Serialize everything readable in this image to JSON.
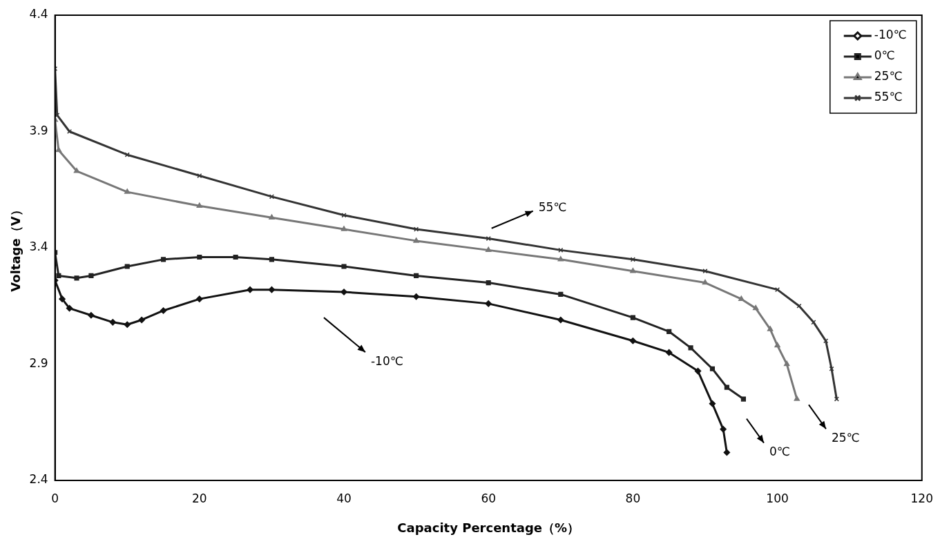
{
  "chart_data": {
    "type": "line",
    "xlabel": "Capacity Percentage（%）",
    "ylabel": "Voltage（V）",
    "xlim": [
      0,
      120
    ],
    "xticks": [
      0,
      20,
      40,
      60,
      80,
      100,
      120
    ],
    "ylim": [
      2.4,
      4.4
    ],
    "yticks": [
      2.4,
      2.9,
      3.4,
      3.9,
      4.4
    ],
    "grid": false,
    "legend": "top right",
    "line_style": "solid",
    "series": [
      {
        "name": "-10℃",
        "color": "#111111",
        "marker": "diamond",
        "x": [
          0,
          1,
          2,
          5,
          8,
          10,
          12,
          15,
          20,
          27,
          30,
          40,
          50,
          60,
          70,
          80,
          85,
          89,
          91,
          92.5,
          93
        ],
        "values": [
          3.26,
          3.18,
          3.14,
          3.11,
          3.08,
          3.07,
          3.09,
          3.13,
          3.18,
          3.22,
          3.22,
          3.21,
          3.19,
          3.16,
          3.09,
          3.0,
          2.95,
          2.87,
          2.73,
          2.62,
          2.52
        ]
      },
      {
        "name": "0℃",
        "color": "#222222",
        "marker": "square",
        "x": [
          0,
          0.5,
          3,
          5,
          10,
          15,
          20,
          25,
          30,
          40,
          50,
          60,
          70,
          80,
          85,
          88,
          91,
          93,
          95.3
        ],
        "values": [
          3.38,
          3.28,
          3.27,
          3.28,
          3.32,
          3.35,
          3.36,
          3.36,
          3.35,
          3.32,
          3.28,
          3.25,
          3.2,
          3.1,
          3.04,
          2.97,
          2.88,
          2.8,
          2.75
        ]
      },
      {
        "name": "25℃",
        "color": "#777777",
        "marker": "triangle",
        "x": [
          0,
          0.5,
          3,
          10,
          20,
          30,
          40,
          50,
          60,
          70,
          80,
          90,
          95,
          97,
          99,
          100,
          101.3,
          102.7
        ],
        "values": [
          3.95,
          3.82,
          3.73,
          3.64,
          3.58,
          3.53,
          3.48,
          3.43,
          3.39,
          3.35,
          3.3,
          3.25,
          3.18,
          3.14,
          3.05,
          2.98,
          2.9,
          2.75
        ]
      },
      {
        "name": "55℃",
        "color": "#333333",
        "marker": "cross",
        "x": [
          0,
          0.3,
          2,
          10,
          20,
          30,
          40,
          50,
          60,
          70,
          80,
          90,
          100,
          103,
          105,
          106.7,
          107.5,
          108.2
        ],
        "values": [
          4.17,
          3.97,
          3.9,
          3.8,
          3.71,
          3.62,
          3.54,
          3.48,
          3.44,
          3.39,
          3.35,
          3.3,
          3.22,
          3.15,
          3.08,
          3.0,
          2.88,
          2.75
        ]
      }
    ],
    "annotations": [
      "55℃",
      "-10℃",
      "0℃",
      "25℃"
    ]
  }
}
